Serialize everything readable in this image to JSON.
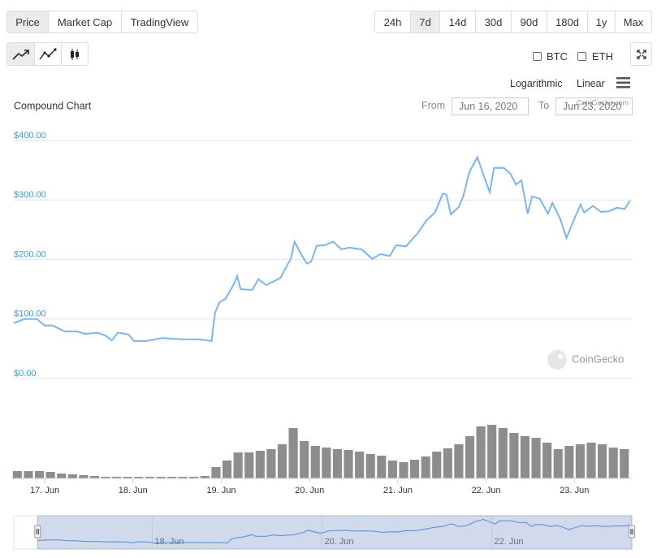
{
  "tabs": [
    "Price",
    "Market Cap",
    "TradingView"
  ],
  "ranges": [
    "24h",
    "7d",
    "14d",
    "30d",
    "90d",
    "180d",
    "1y",
    "Max"
  ],
  "compare": [
    "BTC",
    "ETH"
  ],
  "scales": [
    "Logarithmic",
    "Linear"
  ],
  "date_range": {
    "from_label": "From",
    "from": "Jun 16, 2020",
    "to_label": "To",
    "to": "Jun 23, 2020"
  },
  "credits": "CoinGecko.com",
  "watermark": "CoinGecko",
  "chart_data": {
    "type": "line",
    "title": "Compound Chart",
    "x": [
      16.65,
      16.77,
      16.91,
      17.0,
      17.09,
      17.23,
      17.37,
      17.46,
      17.6,
      17.69,
      17.76,
      17.83,
      17.95,
      18.01,
      18.15,
      18.33,
      18.56,
      18.75,
      18.89,
      18.93,
      18.98,
      19.05,
      19.14,
      19.18,
      19.22,
      19.35,
      19.42,
      19.51,
      19.67,
      19.73,
      19.79,
      19.83,
      19.9,
      19.97,
      20.02,
      20.08,
      20.17,
      20.27,
      20.36,
      20.45,
      20.59,
      20.71,
      20.8,
      20.91,
      20.98,
      21.09,
      21.23,
      21.32,
      21.42,
      21.51,
      21.55,
      21.6,
      21.69,
      21.74,
      21.81,
      21.9,
      21.97,
      22.04,
      22.09,
      22.2,
      22.27,
      22.34,
      22.4,
      22.47,
      22.52,
      22.61,
      22.7,
      22.75,
      22.84,
      22.91,
      22.98,
      23.07,
      23.11,
      23.21,
      23.3,
      23.39,
      23.48,
      23.57,
      23.63
    ],
    "series": [
      {
        "color": "#7cb5ec",
        "values": [
          93,
          100,
          100,
          89,
          89,
          79,
          79,
          75,
          77,
          72,
          64,
          77,
          74,
          63,
          63,
          68,
          66,
          66,
          63,
          111,
          128,
          134,
          158,
          172,
          150,
          149,
          167,
          157,
          169,
          186,
          202,
          230,
          210,
          193,
          197,
          223,
          224,
          230,
          217,
          220,
          217,
          201,
          209,
          206,
          224,
          222,
          245,
          265,
          279,
          311,
          309,
          276,
          288,
          306,
          347,
          372,
          342,
          313,
          354,
          354,
          345,
          326,
          333,
          277,
          306,
          302,
          277,
          295,
          268,
          236,
          262,
          292,
          279,
          290,
          280,
          281,
          287,
          285,
          299
        ]
      }
    ],
    "xlim": [
      16.65,
      23.65
    ],
    "xticks": [
      {
        "value": 17,
        "label": "17. Jun"
      },
      {
        "value": 18,
        "label": "18. Jun"
      },
      {
        "value": 19,
        "label": "19. Jun"
      },
      {
        "value": 20,
        "label": "20. Jun"
      },
      {
        "value": 21,
        "label": "21. Jun"
      },
      {
        "value": 22,
        "label": "22. Jun"
      },
      {
        "value": 23,
        "label": "23. Jun"
      }
    ],
    "ylim": [
      0,
      400
    ],
    "yticks": [
      {
        "value": 0,
        "label": "$0.00"
      },
      {
        "value": 100,
        "label": "$100.00"
      },
      {
        "value": 200,
        "label": "$200.00"
      },
      {
        "value": 300,
        "label": "$300.00"
      },
      {
        "value": 400,
        "label": "$400.00"
      }
    ],
    "grid": true,
    "volume": {
      "color": "#8d8d8d",
      "ylim": [
        0,
        70
      ],
      "x": [
        16.69,
        16.815,
        16.94,
        17.065,
        17.19,
        17.315,
        17.44,
        17.565,
        17.69,
        17.815,
        17.94,
        18.065,
        18.19,
        18.315,
        18.44,
        18.565,
        18.69,
        18.815,
        18.94,
        19.065,
        19.19,
        19.315,
        19.44,
        19.565,
        19.69,
        19.815,
        19.94,
        20.065,
        20.19,
        20.315,
        20.44,
        20.565,
        20.69,
        20.815,
        20.94,
        21.065,
        21.19,
        21.315,
        21.44,
        21.565,
        21.69,
        21.815,
        21.94,
        22.065,
        22.19,
        22.315,
        22.44,
        22.565,
        22.69,
        22.815,
        22.94,
        23.065,
        23.19,
        23.315,
        23.44,
        23.565
      ],
      "values": [
        9,
        9,
        9,
        8,
        6,
        5,
        4,
        3,
        2,
        2,
        2,
        2,
        2,
        2,
        2,
        2,
        2,
        3,
        14,
        22,
        32,
        32,
        34,
        36,
        42,
        62,
        46,
        40,
        38,
        36,
        35,
        33,
        30,
        28,
        22,
        20,
        23,
        27,
        33,
        37,
        42,
        52,
        64,
        66,
        62,
        56,
        52,
        50,
        44,
        36,
        40,
        42,
        44,
        42,
        38,
        36
      ]
    },
    "navigator": {
      "color": "#4a8bd1",
      "xlim": [
        16.37,
        23.65
      ],
      "ylim": [
        -20,
        420
      ],
      "xticks": [
        {
          "value": 18,
          "label": "18. Jun"
        },
        {
          "value": 20,
          "label": "20. Jun"
        },
        {
          "value": 22,
          "label": "22. Jun"
        }
      ]
    }
  }
}
